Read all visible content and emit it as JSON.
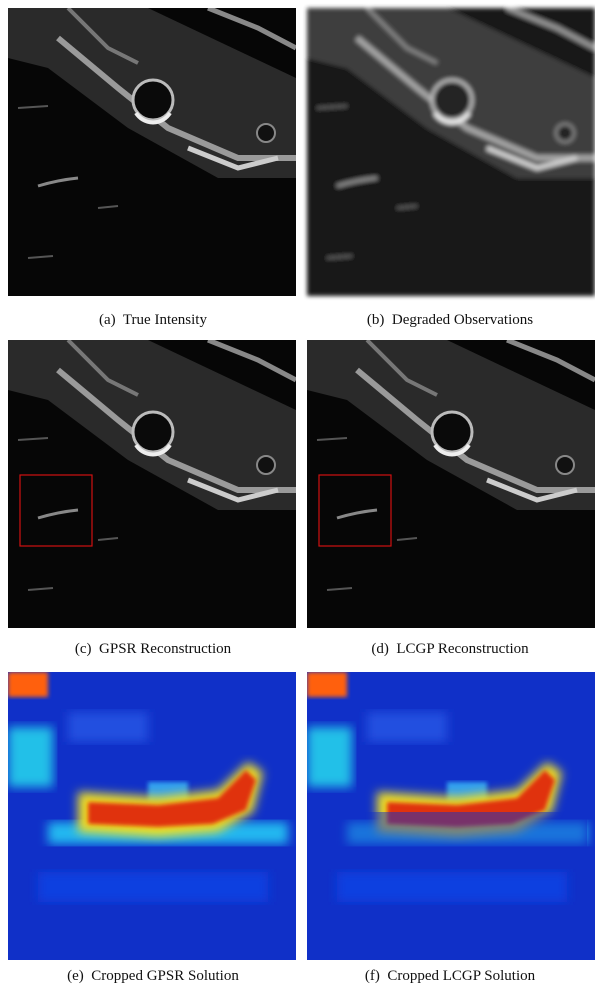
{
  "figure": {
    "panels": [
      {
        "caption": "(a)  True Intensity"
      },
      {
        "caption": "(b)  Degraded Observations"
      },
      {
        "caption": "(c)  GPSR Reconstruction"
      },
      {
        "caption": "(d)  LCGP Reconstruction"
      },
      {
        "caption": "(e)  Cropped GPSR Solution"
      },
      {
        "caption": "(f)  Cropped LCGP Solution"
      }
    ]
  }
}
